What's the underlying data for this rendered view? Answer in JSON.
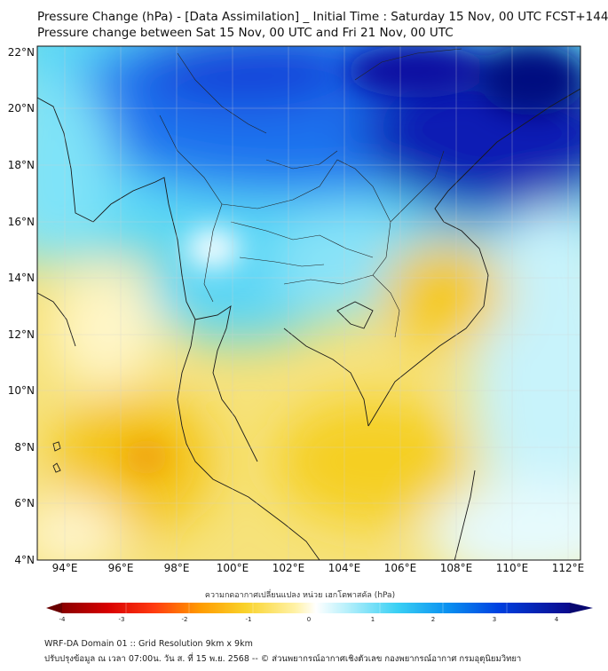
{
  "title_line1": "Pressure Change (hPa) - [Data Assimilation] _ Initial Time : Saturday 15 Nov, 00 UTC FCST+144",
  "title_line2": "Pressure change between Sat 15 Nov, 00 UTC and Fri 21 Nov, 00 UTC",
  "map": {
    "lat_labels": [
      "22°N",
      "20°N",
      "18°N",
      "16°N",
      "14°N",
      "12°N",
      "10°N",
      "8°N",
      "6°N",
      "4°N"
    ],
    "lon_labels": [
      "94°E",
      "96°E",
      "98°E",
      "100°E",
      "102°E",
      "104°E",
      "106°E",
      "108°E",
      "110°E",
      "112°E"
    ],
    "colors": {
      "strong_fall": "#8b0000",
      "fall": "#f5d020",
      "neutral": "#ffffff",
      "rise": "#30c8f0",
      "strong_rise": "#0a0a8c",
      "coast": "#1a1a1a"
    }
  },
  "colorbar": {
    "label": "ความกดอากาศเปลี่ยนแปลง หน่วย เฮกโตพาสคัล (hPa)",
    "ticks": [
      "-4",
      "-3",
      "-2",
      "-1",
      "0",
      "1",
      "2",
      "3",
      "4"
    ],
    "min": -4,
    "max": 4
  },
  "footer_line1": "WRF-DA Domain 01 :: Grid Resolution 9km x 9km",
  "footer_line2": "ปรับปรุงข้อมูล ณ เวลา 07:00น. วัน ส. ที่ 15 พ.ย. 2568 -- © ส่วนพยากรณ์อากาศเชิงตัวเลข กองพยากรณ์อากาศ กรมอุตุนิยมวิทยา"
}
